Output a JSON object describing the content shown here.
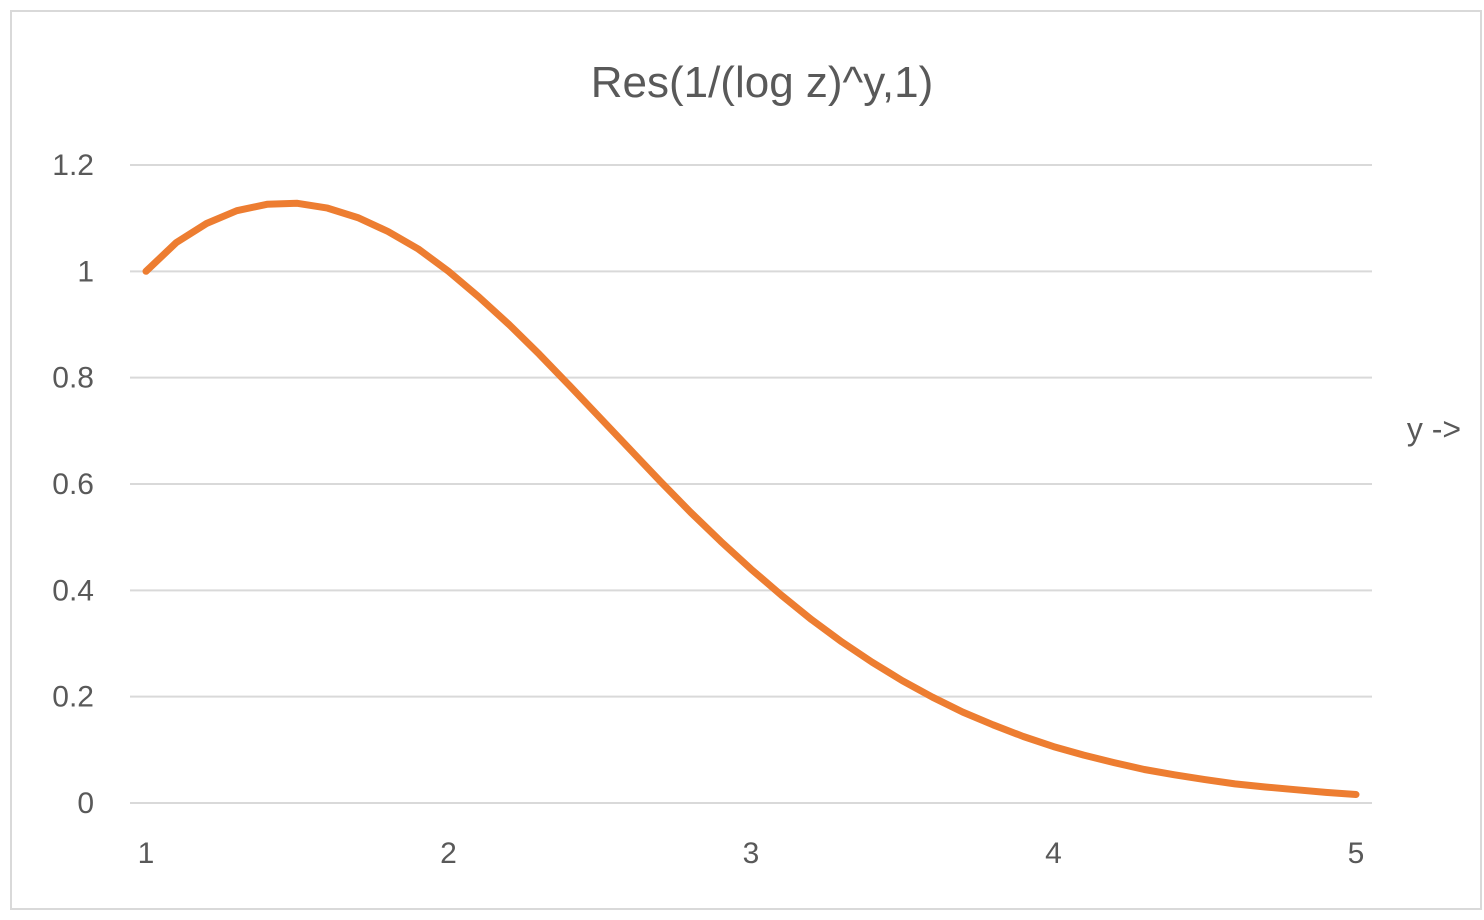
{
  "chart_data": {
    "type": "line",
    "title": "Res(1/(log z)^y,1)",
    "xlabel": "y ->",
    "ylabel": "",
    "xlim": [
      1,
      5
    ],
    "ylim": [
      0,
      1.2
    ],
    "x_ticks": [
      "1",
      "2",
      "3",
      "4",
      "5"
    ],
    "y_ticks": [
      "0",
      "0.2",
      "0.4",
      "0.6",
      "0.8",
      "1",
      "1.2"
    ],
    "grid": true,
    "legend": "none",
    "series": [
      {
        "color": "#ed7d31",
        "x": [
          1.0,
          1.1,
          1.2,
          1.3,
          1.4,
          1.5,
          1.6,
          1.7,
          1.8,
          1.9,
          2.0,
          2.1,
          2.2,
          2.3,
          2.4,
          2.5,
          2.6,
          2.7,
          2.8,
          2.9,
          3.0,
          3.1,
          3.2,
          3.3,
          3.4,
          3.5,
          3.6,
          3.7,
          3.8,
          3.9,
          4.0,
          4.1,
          4.2,
          4.3,
          4.4,
          4.5,
          4.6,
          4.7,
          4.8,
          4.9,
          5.0
        ],
        "y": [
          1.0,
          1.054,
          1.09,
          1.114,
          1.126,
          1.128,
          1.119,
          1.101,
          1.075,
          1.042,
          1.0,
          0.952,
          0.9,
          0.844,
          0.785,
          0.725,
          0.665,
          0.605,
          0.547,
          0.492,
          0.44,
          0.391,
          0.345,
          0.303,
          0.265,
          0.23,
          0.199,
          0.171,
          0.147,
          0.125,
          0.106,
          0.09,
          0.076,
          0.063,
          0.053,
          0.044,
          0.036,
          0.03,
          0.025,
          0.02,
          0.016
        ]
      }
    ]
  }
}
